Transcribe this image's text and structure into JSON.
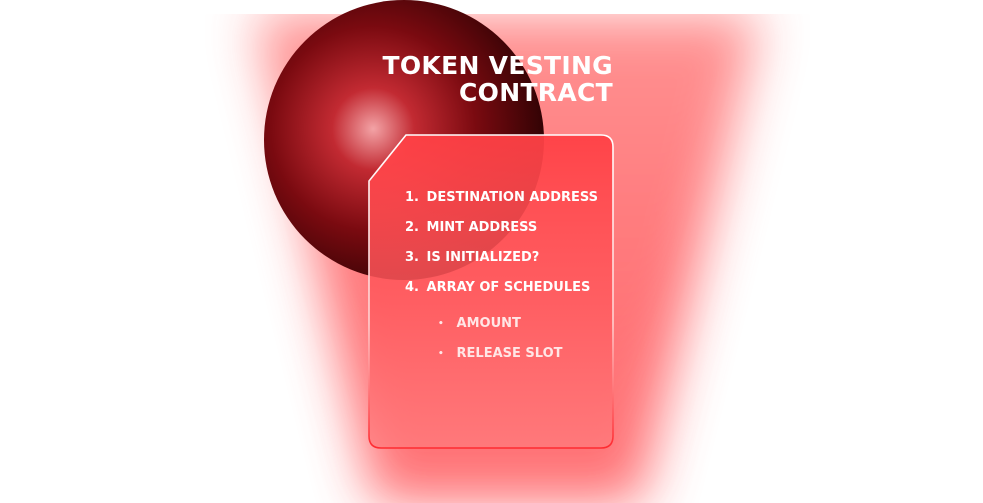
{
  "title": {
    "line1": "TOKEN VESTING",
    "line2": "CONTRACT"
  },
  "fields": [
    {
      "num": "1.",
      "label": "DESTINATION ADDRESS"
    },
    {
      "num": "2.",
      "label": "MINT ADDRESS"
    },
    {
      "num": "3.",
      "label": "IS INITIALIZED?"
    },
    {
      "num": "4.",
      "label": "ARRAY OF SCHEDULES"
    }
  ],
  "schedule_fields": [
    {
      "bullet": "•",
      "label": "AMOUNT"
    },
    {
      "bullet": "•",
      "label": "RELEASE SLOT"
    }
  ],
  "colors": {
    "accent": "#ff4a4f",
    "orb_dark": "#1a0000",
    "glow": "#ff8a8a"
  }
}
